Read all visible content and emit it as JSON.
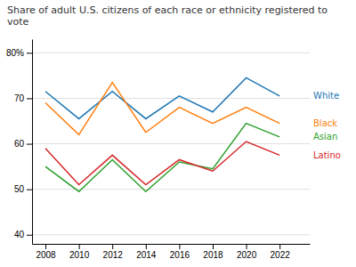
{
  "chart_data": {
    "type": "line",
    "title": "Share of adult U.S. citizens of each race or ethnicity registered to vote",
    "x": [
      2008,
      2010,
      2012,
      2014,
      2016,
      2018,
      2020,
      2022
    ],
    "series": [
      {
        "name": "White",
        "values": [
          71.5,
          65.5,
          71.5,
          65.5,
          70.5,
          67.0,
          74.5,
          70.5
        ]
      },
      {
        "name": "Black",
        "values": [
          69.0,
          62.0,
          73.5,
          62.5,
          68.0,
          64.5,
          68.0,
          64.5
        ]
      },
      {
        "name": "Asian",
        "values": [
          55.0,
          49.5,
          56.5,
          49.5,
          56.0,
          54.5,
          64.5,
          61.5
        ]
      },
      {
        "name": "Latino",
        "values": [
          59.0,
          51.0,
          57.5,
          51.0,
          56.5,
          54.0,
          60.5,
          57.5
        ]
      }
    ],
    "xlim": [
      2007.2,
      2023.8
    ],
    "xticks": [
      2008,
      2010,
      2012,
      2014,
      2016,
      2018,
      2020,
      2022
    ],
    "ylim": [
      38,
      83
    ],
    "yticks": [
      40,
      50,
      60,
      70,
      {
        "value": 80,
        "label": "80%"
      }
    ],
    "grid": true
  }
}
